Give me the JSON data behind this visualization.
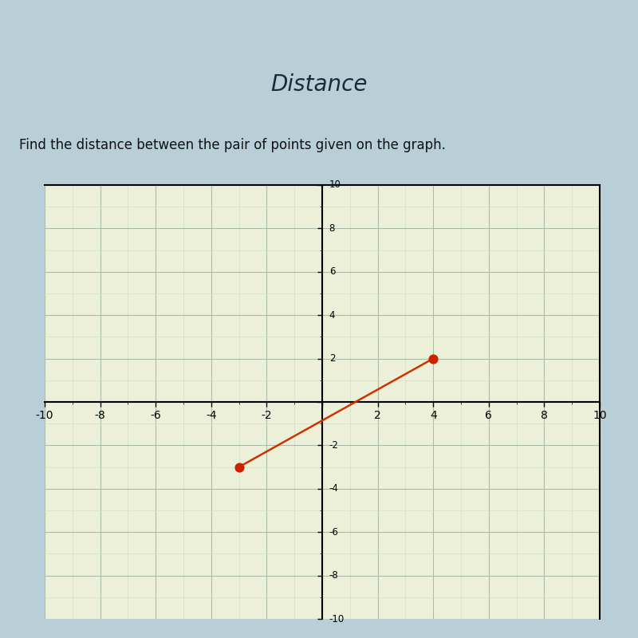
{
  "title": "Distance",
  "subtitle": "Find the distance between the pair of points given on the graph.",
  "point1": [
    -3,
    -3
  ],
  "point2": [
    4,
    2
  ],
  "point_color": "#cc2200",
  "line_color": "#cc3300",
  "xlim": [
    -10,
    10
  ],
  "ylim": [
    -10,
    10
  ],
  "major_ticks": [
    -10,
    -8,
    -6,
    -4,
    -2,
    0,
    2,
    4,
    6,
    8,
    10
  ],
  "grid_major_color": "#aabbaa",
  "grid_minor_color": "#ccddbb",
  "graph_bg": "#edf0d8",
  "header_bg": "#5ab5cc",
  "page_bg": "#b8cfd8",
  "top_strip_bg": "#c8cdd0",
  "title_color": "#1a2a3a",
  "subtitle_color": "#111111",
  "point_size": 60,
  "line_width": 1.8,
  "title_fontsize": 20,
  "subtitle_fontsize": 12
}
